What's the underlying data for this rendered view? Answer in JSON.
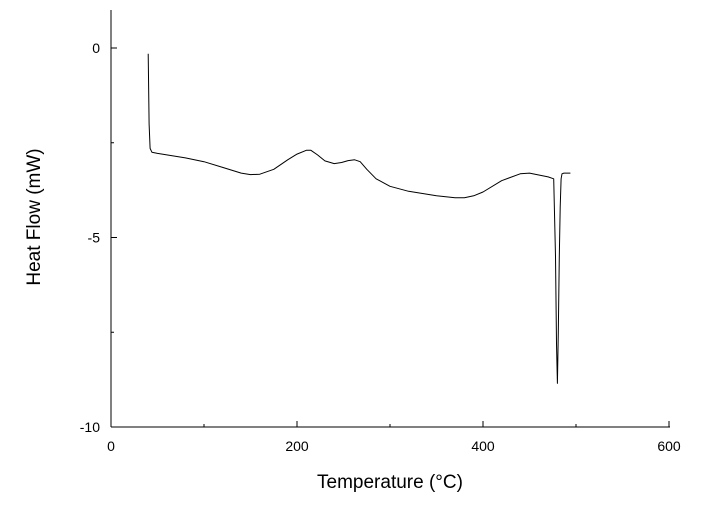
{
  "chart_data": {
    "type": "line",
    "title": "",
    "xlabel": "Temperature (°C)",
    "ylabel": "Heat Flow (mW)",
    "xlim": [
      0,
      600
    ],
    "ylim": [
      -10,
      1
    ],
    "xticks": [
      0,
      200,
      400,
      600
    ],
    "xtick_labels": [
      "0",
      "200",
      "400",
      "600"
    ],
    "yticks": [
      0,
      -5,
      -10
    ],
    "ytick_labels": [
      "0",
      "-5",
      "-10"
    ],
    "grid": false,
    "legend": "none",
    "colors": {
      "line": "#000000",
      "axis": "#000000"
    },
    "series": [
      {
        "x": [
          40,
          41,
          42,
          44,
          50,
          60,
          80,
          100,
          120,
          140,
          150,
          160,
          175,
          190,
          200,
          210,
          215,
          222,
          230,
          240,
          248,
          255,
          262,
          268,
          275,
          285,
          300,
          320,
          350,
          370,
          380,
          390,
          400,
          420,
          440,
          450,
          460,
          470,
          476,
          478,
          479,
          480,
          481,
          482,
          483,
          484,
          485,
          487,
          490,
          494
        ],
        "y": [
          -0.15,
          -2.0,
          -2.65,
          -2.75,
          -2.78,
          -2.82,
          -2.9,
          -3.0,
          -3.15,
          -3.3,
          -3.34,
          -3.33,
          -3.2,
          -2.95,
          -2.8,
          -2.7,
          -2.7,
          -2.82,
          -2.98,
          -3.05,
          -3.02,
          -2.97,
          -2.95,
          -3.0,
          -3.2,
          -3.45,
          -3.65,
          -3.78,
          -3.9,
          -3.95,
          -3.95,
          -3.9,
          -3.8,
          -3.5,
          -3.32,
          -3.3,
          -3.35,
          -3.4,
          -3.45,
          -5.5,
          -7.8,
          -8.85,
          -7.5,
          -5.5,
          -4.2,
          -3.45,
          -3.32,
          -3.3,
          -3.3,
          -3.3
        ]
      }
    ]
  }
}
